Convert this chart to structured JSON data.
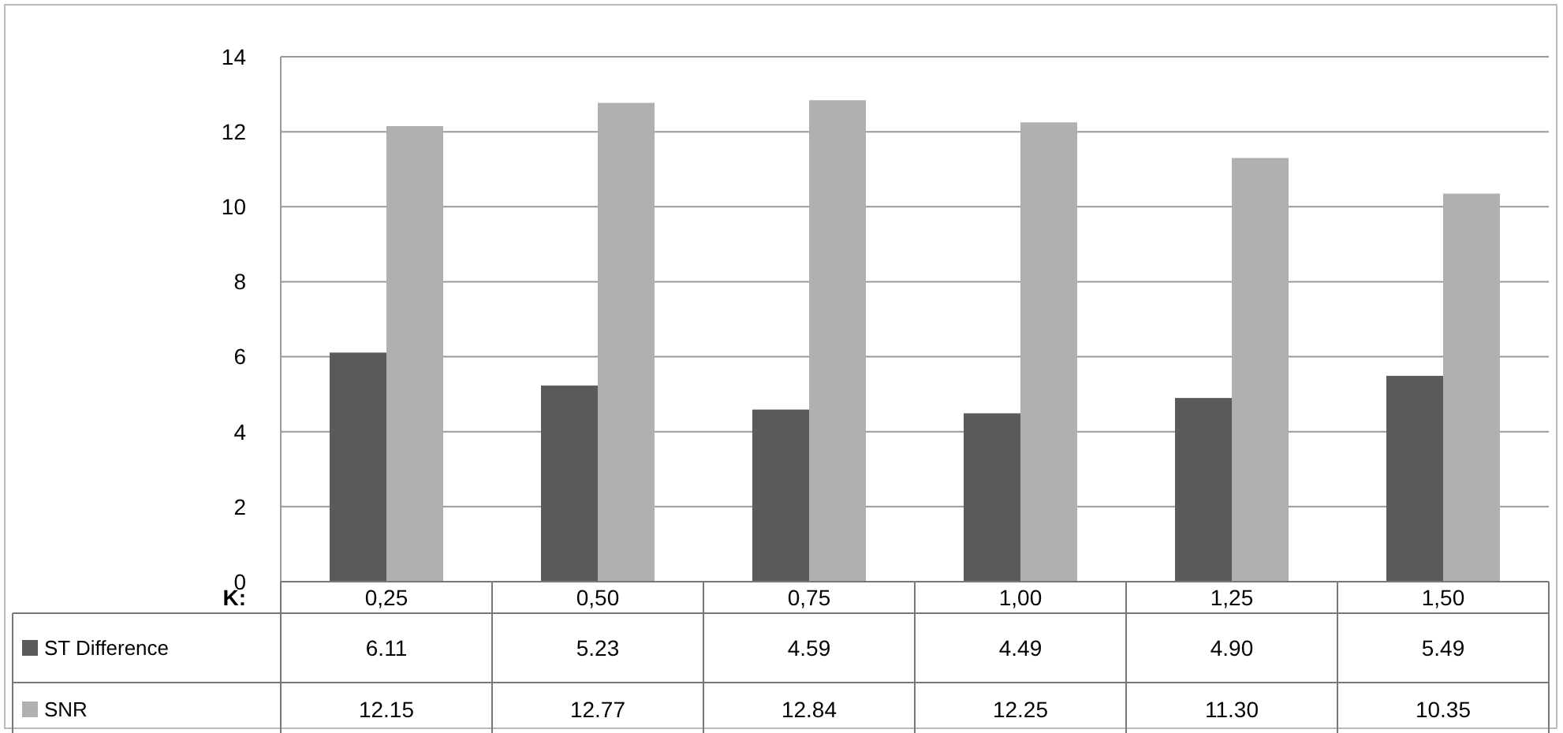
{
  "chart_data": {
    "type": "bar",
    "xlabel": "K:",
    "categories": [
      "0,25",
      "0,50",
      "0,75",
      "1,00",
      "1,25",
      "1,50"
    ],
    "series": [
      {
        "name": "ST Difference",
        "color": "#5a5a5a",
        "values": [
          6.11,
          5.23,
          4.59,
          4.49,
          4.9,
          5.49
        ],
        "value_labels": [
          "6.11",
          "5.23",
          "4.59",
          "4.49",
          "4.90",
          "5.49"
        ]
      },
      {
        "name": "SNR",
        "color": "#b0b0b0",
        "values": [
          12.15,
          12.77,
          12.84,
          12.25,
          11.3,
          10.35
        ],
        "value_labels": [
          "12.15",
          "12.77",
          "12.84",
          "12.25",
          "11.30",
          "10.35"
        ]
      }
    ],
    "ylim": [
      0,
      14
    ],
    "yticks": [
      0,
      2,
      4,
      6,
      8,
      10,
      12,
      14
    ],
    "grid": "y",
    "legend": "bottom left"
  }
}
